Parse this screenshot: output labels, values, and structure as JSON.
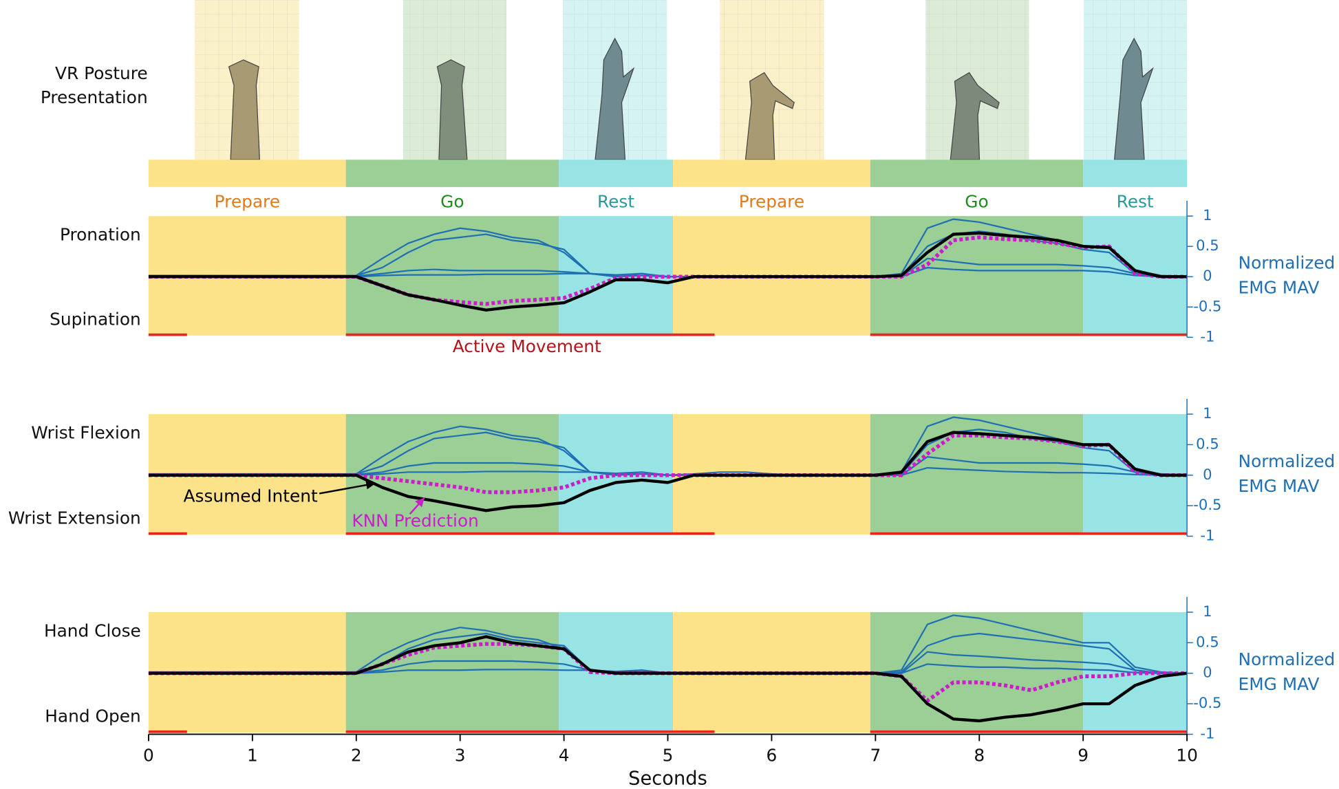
{
  "posture_title": [
    "VR Posture",
    "Presentation"
  ],
  "phases": [
    {
      "label": "Prepare",
      "start": 0,
      "end": 1.9,
      "color": "#fce38a",
      "label_color": "#e07b1c"
    },
    {
      "label": "Go",
      "start": 1.9,
      "end": 3.95,
      "color": "#9ccf96",
      "label_color": "#1f8c1f"
    },
    {
      "label": "Rest",
      "start": 3.95,
      "end": 5.05,
      "color": "#98e4e4",
      "label_color": "#2a9a9a"
    },
    {
      "label": "Prepare",
      "start": 5.05,
      "end": 6.95,
      "color": "#fce38a",
      "label_color": "#e07b1c"
    },
    {
      "label": "Go",
      "start": 6.95,
      "end": 9.0,
      "color": "#9ccf96",
      "label_color": "#1f8c1f"
    },
    {
      "label": "Rest",
      "start": 9.0,
      "end": 10,
      "color": "#98e4e4",
      "label_color": "#2a9a9a"
    }
  ],
  "active_movement": {
    "label": "Active Movement",
    "color": "#e8261f",
    "label_color": "#b5121b",
    "intervals": [
      [
        0,
        0.37
      ],
      [
        1.9,
        5.45
      ],
      [
        6.95,
        10
      ]
    ]
  },
  "chart_data": [
    {
      "type": "line",
      "top_label": "Pronation",
      "bottom_label": "Supination",
      "ylabel": [
        "Normalized",
        "EMG MAV"
      ],
      "xlim": [
        0,
        10
      ],
      "ylim": [
        -1,
        1
      ],
      "yticks": [
        -1,
        -0.5,
        0,
        0.5,
        1
      ],
      "x": [
        0,
        0.25,
        0.5,
        0.75,
        1,
        1.25,
        1.5,
        1.75,
        2,
        2.25,
        2.5,
        2.75,
        3,
        3.25,
        3.5,
        3.75,
        4,
        4.25,
        4.5,
        4.75,
        5,
        5.25,
        5.5,
        5.75,
        6,
        6.25,
        6.5,
        6.75,
        7,
        7.25,
        7.5,
        7.75,
        8,
        8.25,
        8.5,
        8.75,
        9,
        9.25,
        9.5,
        9.75,
        10
      ],
      "series": [
        {
          "color": "#000000",
          "style": "solid",
          "values": [
            0,
            0,
            0,
            0,
            0,
            0,
            0,
            0,
            0,
            -0.15,
            -0.3,
            -0.38,
            -0.47,
            -0.55,
            -0.5,
            -0.47,
            -0.43,
            -0.25,
            -0.05,
            -0.05,
            -0.1,
            0,
            0,
            0,
            0,
            0,
            0,
            0,
            0,
            0.02,
            0.4,
            0.7,
            0.72,
            0.68,
            0.65,
            0.6,
            0.5,
            0.48,
            0.1,
            0,
            0
          ]
        },
        {
          "color": "#c81fc8",
          "style": "dotted",
          "values": [
            0,
            0,
            0,
            0,
            0,
            0,
            0,
            0,
            0,
            -0.15,
            -0.3,
            -0.38,
            -0.42,
            -0.45,
            -0.4,
            -0.38,
            -0.35,
            -0.2,
            -0.02,
            0,
            0,
            0,
            0,
            0,
            0,
            0,
            0,
            0,
            0,
            0,
            0.2,
            0.6,
            0.65,
            0.62,
            0.6,
            0.55,
            0.48,
            0.5,
            0.05,
            0,
            0
          ]
        },
        {
          "color": "#1f6fb5",
          "style": "thin",
          "values": [
            0,
            0,
            0,
            0,
            0,
            0,
            0,
            0,
            0.02,
            0.3,
            0.55,
            0.7,
            0.8,
            0.75,
            0.65,
            0.6,
            0.4,
            0.05,
            0.03,
            0.05,
            0,
            0,
            0,
            0,
            0,
            0,
            0,
            0,
            0,
            0.05,
            0.8,
            0.95,
            0.9,
            0.8,
            0.7,
            0.6,
            0.5,
            0.5,
            0.1,
            0.02,
            0
          ]
        },
        {
          "color": "#1f6fb5",
          "style": "thin",
          "values": [
            0.02,
            0.02,
            0.02,
            0.02,
            0.02,
            0.02,
            0.02,
            0.02,
            0.02,
            0.15,
            0.4,
            0.6,
            0.65,
            0.7,
            0.6,
            0.55,
            0.45,
            0.05,
            0,
            0.02,
            0,
            0,
            0,
            0,
            0,
            0,
            0,
            0,
            0,
            0.02,
            0.5,
            0.7,
            0.75,
            0.7,
            0.6,
            0.55,
            0.45,
            0.4,
            0.05,
            0,
            0
          ]
        },
        {
          "color": "#1f6fb5",
          "style": "thin",
          "values": [
            0.01,
            0.01,
            0.01,
            0.01,
            0.01,
            0.01,
            0.01,
            0.01,
            0.01,
            0.05,
            0.1,
            0.12,
            0.1,
            0.1,
            0.1,
            0.1,
            0.08,
            0.05,
            0.02,
            0.05,
            0,
            0,
            0,
            0,
            0,
            0,
            0,
            0,
            0,
            0,
            0.3,
            0.25,
            0.2,
            0.2,
            0.2,
            0.2,
            0.18,
            0.15,
            0.05,
            0,
            0
          ]
        },
        {
          "color": "#1f6fb5",
          "style": "thin",
          "values": [
            0,
            0,
            0,
            0,
            0,
            0,
            0,
            0,
            0,
            0.02,
            0.03,
            0.03,
            0.03,
            0.04,
            0.04,
            0.04,
            0.05,
            0.05,
            0.02,
            0.02,
            0,
            0,
            0,
            0,
            0,
            0,
            0,
            0,
            0,
            0,
            0.15,
            0.12,
            0.1,
            0.1,
            0.1,
            0.1,
            0.1,
            0.08,
            0.02,
            0,
            0
          ]
        }
      ]
    },
    {
      "type": "line",
      "top_label": "Wrist Flexion",
      "bottom_label": "Wrist Extension",
      "ylabel": [
        "Normalized",
        "EMG MAV"
      ],
      "xlim": [
        0,
        10
      ],
      "ylim": [
        -1,
        1
      ],
      "yticks": [
        -1,
        -0.5,
        0,
        0.5,
        1
      ],
      "x": [
        0,
        0.25,
        0.5,
        0.75,
        1,
        1.25,
        1.5,
        1.75,
        2,
        2.25,
        2.5,
        2.75,
        3,
        3.25,
        3.5,
        3.75,
        4,
        4.25,
        4.5,
        4.75,
        5,
        5.25,
        5.5,
        5.75,
        6,
        6.25,
        6.5,
        6.75,
        7,
        7.25,
        7.5,
        7.75,
        8,
        8.25,
        8.5,
        8.75,
        9,
        9.25,
        9.5,
        9.75,
        10
      ],
      "series": [
        {
          "name": "Assumed Intent",
          "color": "#000000",
          "style": "solid",
          "values": [
            0,
            0,
            0,
            0,
            0,
            0,
            0,
            0,
            0,
            -0.2,
            -0.35,
            -0.42,
            -0.5,
            -0.58,
            -0.52,
            -0.5,
            -0.45,
            -0.25,
            -0.12,
            -0.08,
            -0.12,
            0,
            0,
            0,
            0,
            0,
            0,
            0,
            0,
            0.05,
            0.55,
            0.7,
            0.68,
            0.65,
            0.62,
            0.58,
            0.5,
            0.5,
            0.1,
            0,
            0
          ]
        },
        {
          "name": "KNN Prediction",
          "color": "#c81fc8",
          "style": "dotted",
          "values": [
            0,
            0,
            0,
            0,
            0,
            0,
            0,
            0,
            0,
            -0.05,
            -0.1,
            -0.15,
            -0.2,
            -0.28,
            -0.28,
            -0.25,
            -0.2,
            -0.05,
            0,
            0,
            0,
            0,
            0,
            0,
            0,
            0,
            0,
            0,
            0,
            0,
            0.35,
            0.65,
            0.65,
            0.62,
            0.6,
            0.55,
            0.48,
            0.5,
            0.05,
            0,
            0
          ]
        },
        {
          "color": "#1f6fb5",
          "style": "thin",
          "values": [
            0,
            0,
            0,
            0,
            0,
            0,
            0,
            0,
            0.02,
            0.3,
            0.55,
            0.7,
            0.8,
            0.75,
            0.65,
            0.6,
            0.4,
            0.05,
            0.03,
            0.05,
            0,
            0.02,
            0.05,
            0.05,
            0.02,
            0,
            0,
            0,
            0,
            0.05,
            0.8,
            0.95,
            0.9,
            0.8,
            0.7,
            0.6,
            0.5,
            0.5,
            0.1,
            0.02,
            0
          ]
        },
        {
          "color": "#1f6fb5",
          "style": "thin",
          "values": [
            0.02,
            0.02,
            0.02,
            0.02,
            0.02,
            0.02,
            0.02,
            0.02,
            0.02,
            0.15,
            0.4,
            0.6,
            0.65,
            0.7,
            0.6,
            0.55,
            0.45,
            0.05,
            0,
            0.02,
            0,
            0,
            0,
            0,
            0,
            0,
            0,
            0,
            0,
            0.02,
            0.5,
            0.7,
            0.75,
            0.7,
            0.6,
            0.55,
            0.45,
            0.4,
            0.05,
            0,
            0
          ]
        },
        {
          "color": "#1f6fb5",
          "style": "thin",
          "values": [
            0.01,
            0.01,
            0.01,
            0.01,
            0.01,
            0.01,
            0.01,
            0.01,
            0.01,
            0.05,
            0.15,
            0.2,
            0.2,
            0.2,
            0.2,
            0.18,
            0.15,
            0.05,
            0.02,
            0.05,
            0,
            0,
            0,
            0,
            0,
            0,
            0,
            0,
            0,
            0,
            0.3,
            0.25,
            0.2,
            0.2,
            0.2,
            0.2,
            0.18,
            0.15,
            0.05,
            0,
            0
          ]
        },
        {
          "color": "#1f6fb5",
          "style": "thin",
          "values": [
            0,
            0,
            0,
            0,
            0,
            0,
            0,
            0,
            0,
            0.02,
            0.05,
            0.05,
            0.05,
            0.06,
            0.06,
            0.06,
            0.05,
            0.05,
            0.02,
            0.02,
            0,
            0,
            0,
            0,
            0,
            0,
            0,
            0,
            0,
            0,
            0.12,
            0.1,
            0.08,
            0.06,
            0.05,
            0.04,
            0.04,
            0.03,
            0.01,
            0,
            0
          ]
        }
      ]
    },
    {
      "type": "line",
      "top_label": "Hand Close",
      "bottom_label": "Hand Open",
      "ylabel": [
        "Normalized",
        "EMG MAV"
      ],
      "xlabel": "Seconds",
      "xlim": [
        0,
        10
      ],
      "xticks": [
        0,
        1,
        2,
        3,
        4,
        5,
        6,
        7,
        8,
        9,
        10
      ],
      "ylim": [
        -1,
        1
      ],
      "yticks": [
        -1,
        -0.5,
        0,
        0.5,
        1
      ],
      "x": [
        0,
        0.25,
        0.5,
        0.75,
        1,
        1.25,
        1.5,
        1.75,
        2,
        2.25,
        2.5,
        2.75,
        3,
        3.25,
        3.5,
        3.75,
        4,
        4.25,
        4.5,
        4.75,
        5,
        5.25,
        5.5,
        5.75,
        6,
        6.25,
        6.5,
        6.75,
        7,
        7.25,
        7.5,
        7.75,
        8,
        8.25,
        8.5,
        8.75,
        9,
        9.25,
        9.5,
        9.75,
        10
      ],
      "series": [
        {
          "color": "#000000",
          "style": "solid",
          "values": [
            0,
            0,
            0,
            0,
            0,
            0,
            0,
            0,
            0,
            0.15,
            0.35,
            0.45,
            0.5,
            0.6,
            0.5,
            0.45,
            0.4,
            0.05,
            0,
            0,
            0,
            0,
            0,
            0,
            0,
            0,
            0,
            0,
            0,
            -0.05,
            -0.5,
            -0.75,
            -0.78,
            -0.72,
            -0.68,
            -0.6,
            -0.5,
            -0.5,
            -0.2,
            -0.05,
            0
          ]
        },
        {
          "color": "#c81fc8",
          "style": "dotted",
          "values": [
            0,
            0,
            0,
            0,
            0,
            0,
            0,
            0,
            0,
            0.15,
            0.3,
            0.42,
            0.45,
            0.48,
            0.48,
            0.45,
            0.4,
            0.02,
            0,
            0,
            0,
            0,
            0,
            0,
            0,
            0,
            0,
            0,
            0,
            -0.05,
            -0.45,
            -0.15,
            -0.15,
            -0.2,
            -0.28,
            -0.15,
            -0.05,
            -0.05,
            0,
            0,
            0
          ]
        },
        {
          "color": "#1f6fb5",
          "style": "thin",
          "values": [
            0,
            0,
            0,
            0,
            0,
            0,
            0,
            0,
            0.02,
            0.3,
            0.5,
            0.65,
            0.75,
            0.7,
            0.6,
            0.55,
            0.4,
            0.05,
            0.03,
            0.05,
            0,
            0,
            0,
            0,
            0,
            0,
            0,
            0,
            0,
            0.05,
            0.8,
            0.95,
            0.9,
            0.8,
            0.7,
            0.6,
            0.5,
            0.5,
            0.1,
            0.02,
            0
          ]
        },
        {
          "color": "#1f6fb5",
          "style": "thin",
          "values": [
            0.02,
            0.02,
            0.02,
            0.02,
            0.02,
            0.02,
            0.02,
            0.02,
            0.02,
            0.15,
            0.4,
            0.55,
            0.6,
            0.65,
            0.55,
            0.5,
            0.45,
            0.05,
            0,
            0.02,
            0,
            0,
            0,
            0,
            0,
            0,
            0,
            0,
            0,
            0.02,
            0.45,
            0.6,
            0.65,
            0.6,
            0.55,
            0.5,
            0.45,
            0.4,
            0.05,
            0,
            0
          ]
        },
        {
          "color": "#1f6fb5",
          "style": "thin",
          "values": [
            0.01,
            0.01,
            0.01,
            0.01,
            0.01,
            0.01,
            0.01,
            0.01,
            0.01,
            0.05,
            0.15,
            0.2,
            0.2,
            0.2,
            0.2,
            0.18,
            0.15,
            0.05,
            0.02,
            0.05,
            0,
            0,
            0,
            0,
            0,
            0,
            0,
            0,
            0,
            0,
            0.35,
            0.3,
            0.28,
            0.25,
            0.22,
            0.2,
            0.18,
            0.15,
            0.05,
            0,
            0
          ]
        },
        {
          "color": "#1f6fb5",
          "style": "thin",
          "values": [
            0,
            0,
            0,
            0,
            0,
            0,
            0,
            0,
            0,
            0.02,
            0.05,
            0.05,
            0.05,
            0.06,
            0.06,
            0.06,
            0.05,
            0.05,
            0.02,
            0.02,
            0,
            0,
            0,
            0,
            0,
            0,
            0,
            0,
            0,
            0,
            0.15,
            0.12,
            0.1,
            0.1,
            0.08,
            0.08,
            0.06,
            0.05,
            0.01,
            0,
            0
          ]
        }
      ]
    }
  ]
}
